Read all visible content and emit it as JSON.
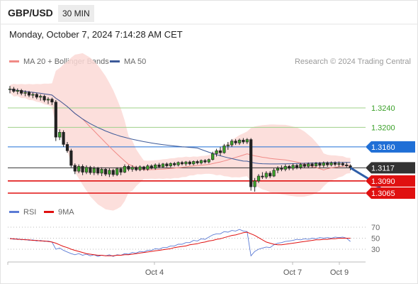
{
  "header": {
    "symbol": "GBP/USD",
    "timeframe": "30 MIN",
    "timestamp": "Monday, October 7, 2024 7:14:28 AM CET"
  },
  "legend": {
    "ma20": {
      "label": "MA 20 + Bollinger Bands",
      "color": "#f08a86"
    },
    "ma50": {
      "label": "MA 50",
      "color": "#3d5a99"
    }
  },
  "copyright": "Research © 2024 Trading Central",
  "rsi_legend": {
    "rsi": {
      "label": "RSI",
      "color": "#5b7bd5"
    },
    "ma9": {
      "label": "9MA",
      "color": "#e01010"
    }
  },
  "chart_data": {
    "type": "candlestick",
    "x_ticks": [
      "Oct 4",
      "Oct 7",
      "Oct 9"
    ],
    "price_levels": [
      {
        "value": 1.324,
        "label": "1.3240",
        "style": "resistance-line",
        "color": "#9fd08a",
        "label_color": "#3aa028"
      },
      {
        "value": 1.32,
        "label": "1.3200",
        "style": "resistance-line",
        "color": "#9fd08a",
        "label_color": "#3aa028"
      },
      {
        "value": 1.316,
        "label": "1.3160",
        "style": "pivot",
        "color": "#1f6fd6"
      },
      {
        "value": 1.3117,
        "label": "1.3117",
        "style": "current-price",
        "color": "#333333"
      },
      {
        "value": 1.309,
        "label": "1.3090",
        "style": "support",
        "color": "#e01010"
      },
      {
        "value": 1.3065,
        "label": "1.3065",
        "style": "support",
        "color": "#e01010"
      }
    ],
    "ohlc": [
      [
        1.3278,
        1.3285,
        1.327,
        1.3279
      ],
      [
        1.3279,
        1.3283,
        1.3271,
        1.3274
      ],
      [
        1.3274,
        1.328,
        1.3268,
        1.3276
      ],
      [
        1.3276,
        1.3279,
        1.3266,
        1.327
      ],
      [
        1.327,
        1.3276,
        1.3264,
        1.3272
      ],
      [
        1.3272,
        1.3275,
        1.3262,
        1.3266
      ],
      [
        1.3266,
        1.3272,
        1.326,
        1.3268
      ],
      [
        1.3268,
        1.3271,
        1.3258,
        1.3262
      ],
      [
        1.3262,
        1.3268,
        1.3255,
        1.3264
      ],
      [
        1.3264,
        1.3267,
        1.3252,
        1.3256
      ],
      [
        1.3256,
        1.3262,
        1.3248,
        1.3258
      ],
      [
        1.3258,
        1.3261,
        1.3246,
        1.3252
      ],
      [
        1.3252,
        1.3256,
        1.3172,
        1.318
      ],
      [
        1.318,
        1.3196,
        1.3174,
        1.319
      ],
      [
        1.319,
        1.3194,
        1.316,
        1.3165
      ],
      [
        1.3165,
        1.317,
        1.3148,
        1.3152
      ],
      [
        1.3152,
        1.3156,
        1.3118,
        1.3122
      ],
      [
        1.3122,
        1.3126,
        1.3104,
        1.311
      ],
      [
        1.311,
        1.3124,
        1.3106,
        1.312
      ],
      [
        1.312,
        1.3124,
        1.3102,
        1.3108
      ],
      [
        1.3108,
        1.3122,
        1.3104,
        1.3118
      ],
      [
        1.3118,
        1.3121,
        1.3103,
        1.3107
      ],
      [
        1.3107,
        1.312,
        1.3102,
        1.3116
      ],
      [
        1.3116,
        1.3119,
        1.3102,
        1.3106
      ],
      [
        1.3106,
        1.3118,
        1.31,
        1.3114
      ],
      [
        1.3114,
        1.3117,
        1.31,
        1.3104
      ],
      [
        1.3104,
        1.3116,
        1.3098,
        1.3112
      ],
      [
        1.3112,
        1.3115,
        1.3099,
        1.3103
      ],
      [
        1.3103,
        1.3118,
        1.31,
        1.3115
      ],
      [
        1.3115,
        1.3118,
        1.3102,
        1.3108
      ],
      [
        1.3108,
        1.3124,
        1.3106,
        1.312
      ],
      [
        1.312,
        1.3123,
        1.311,
        1.3114
      ],
      [
        1.3114,
        1.3122,
        1.3109,
        1.3118
      ],
      [
        1.3118,
        1.3121,
        1.311,
        1.3113
      ],
      [
        1.3113,
        1.3122,
        1.311,
        1.3119
      ],
      [
        1.3119,
        1.3121,
        1.3111,
        1.3114
      ],
      [
        1.3114,
        1.3124,
        1.3111,
        1.3121
      ],
      [
        1.3121,
        1.3124,
        1.3114,
        1.3116
      ],
      [
        1.3116,
        1.3126,
        1.3113,
        1.3123
      ],
      [
        1.3123,
        1.3127,
        1.3116,
        1.3119
      ],
      [
        1.3119,
        1.3127,
        1.3116,
        1.3125
      ],
      [
        1.3125,
        1.3128,
        1.3118,
        1.3121
      ],
      [
        1.3121,
        1.3128,
        1.3118,
        1.3126
      ],
      [
        1.3126,
        1.3129,
        1.312,
        1.3123
      ],
      [
        1.3123,
        1.313,
        1.312,
        1.3128
      ],
      [
        1.3128,
        1.3131,
        1.3122,
        1.3125
      ],
      [
        1.3125,
        1.3131,
        1.3121,
        1.3129
      ],
      [
        1.3129,
        1.3132,
        1.3122,
        1.3125
      ],
      [
        1.3125,
        1.3132,
        1.3122,
        1.313
      ],
      [
        1.313,
        1.3133,
        1.3124,
        1.3127
      ],
      [
        1.3127,
        1.3134,
        1.3124,
        1.3132
      ],
      [
        1.3132,
        1.3135,
        1.3126,
        1.3129
      ],
      [
        1.3129,
        1.3136,
        1.3126,
        1.3134
      ],
      [
        1.3134,
        1.315,
        1.3132,
        1.3146
      ],
      [
        1.3146,
        1.3156,
        1.314,
        1.3152
      ],
      [
        1.3152,
        1.316,
        1.3142,
        1.3148
      ],
      [
        1.3148,
        1.3166,
        1.3146,
        1.3162
      ],
      [
        1.3162,
        1.317,
        1.3154,
        1.3164
      ],
      [
        1.3164,
        1.3176,
        1.316,
        1.3172
      ],
      [
        1.3172,
        1.3176,
        1.3164,
        1.3168
      ],
      [
        1.3168,
        1.3177,
        1.3164,
        1.3174
      ],
      [
        1.3174,
        1.3178,
        1.3166,
        1.317
      ],
      [
        1.317,
        1.3178,
        1.3166,
        1.3175
      ],
      [
        1.3175,
        1.3178,
        1.307,
        1.3078
      ],
      [
        1.3078,
        1.3096,
        1.3068,
        1.309
      ],
      [
        1.309,
        1.3104,
        1.3086,
        1.31
      ],
      [
        1.31,
        1.3108,
        1.3094,
        1.3098
      ],
      [
        1.3098,
        1.311,
        1.3094,
        1.3106
      ],
      [
        1.3106,
        1.311,
        1.3096,
        1.31
      ],
      [
        1.31,
        1.3116,
        1.3098,
        1.3112
      ],
      [
        1.3112,
        1.312,
        1.3106,
        1.3116
      ],
      [
        1.3116,
        1.3122,
        1.311,
        1.3114
      ],
      [
        1.3114,
        1.3124,
        1.311,
        1.312
      ],
      [
        1.312,
        1.3123,
        1.3112,
        1.3116
      ],
      [
        1.3116,
        1.3126,
        1.3112,
        1.3122
      ],
      [
        1.3122,
        1.3125,
        1.3114,
        1.3118
      ],
      [
        1.3118,
        1.3127,
        1.3114,
        1.3124
      ],
      [
        1.3124,
        1.3127,
        1.3116,
        1.312
      ],
      [
        1.312,
        1.3128,
        1.3116,
        1.3125
      ],
      [
        1.3125,
        1.3128,
        1.3117,
        1.3121
      ],
      [
        1.3121,
        1.3129,
        1.3117,
        1.3126
      ],
      [
        1.3126,
        1.3129,
        1.3118,
        1.3122
      ],
      [
        1.3122,
        1.313,
        1.3118,
        1.3127
      ],
      [
        1.3127,
        1.313,
        1.3119,
        1.3123
      ],
      [
        1.3123,
        1.313,
        1.312,
        1.3127
      ],
      [
        1.3127,
        1.313,
        1.312,
        1.3124
      ],
      [
        1.3124,
        1.313,
        1.3119,
        1.3126
      ],
      [
        1.3126,
        1.3129,
        1.312,
        1.3123
      ],
      [
        1.3123,
        1.3128,
        1.3118,
        1.3121
      ],
      [
        1.3121,
        1.3124,
        1.3112,
        1.3117
      ]
    ],
    "projection_arrow": {
      "from": {
        "x": 89,
        "y": 1.3117
      },
      "to": {
        "x": 97,
        "y": 1.3075
      },
      "color": "#2f5ea8"
    },
    "rsi": {
      "ticks": [
        70,
        50,
        30
      ],
      "ylim": [
        10,
        80
      ],
      "rsi_values": [
        50,
        48,
        49,
        47,
        48,
        46,
        47,
        45,
        46,
        44,
        45,
        43,
        30,
        32,
        28,
        25,
        22,
        20,
        22,
        19,
        21,
        18,
        20,
        17,
        19,
        18,
        20,
        17,
        20,
        19,
        22,
        21,
        24,
        23,
        26,
        25,
        28,
        28,
        31,
        30,
        33,
        33,
        36,
        36,
        39,
        39,
        42,
        42,
        46,
        45,
        49,
        48,
        52,
        56,
        58,
        58,
        62,
        61,
        64,
        63,
        66,
        63,
        62,
        18,
        26,
        30,
        32,
        34,
        33,
        38,
        41,
        42,
        44,
        45,
        46,
        48,
        47,
        49,
        48,
        50,
        49,
        51,
        50,
        51,
        50,
        52,
        51,
        52,
        50,
        44
      ],
      "ma_values": [
        49,
        49,
        48,
        48,
        47,
        47,
        46,
        46,
        45,
        45,
        44,
        43,
        41,
        38,
        35,
        33,
        30,
        28,
        26,
        24,
        22,
        21,
        20,
        19,
        19,
        18,
        18,
        18,
        19,
        19,
        20,
        20,
        21,
        22,
        23,
        24,
        25,
        26,
        27,
        28,
        29,
        30,
        31,
        33,
        34,
        35,
        36,
        38,
        39,
        40,
        42,
        43,
        45,
        46,
        48,
        49,
        51,
        53,
        55,
        56,
        58,
        60,
        61,
        58,
        55,
        51,
        47,
        43,
        41,
        39,
        38,
        38,
        39,
        40,
        41,
        42,
        43,
        44,
        45,
        46,
        47,
        47,
        48,
        48,
        49,
        49,
        50,
        50,
        50,
        50
      ]
    }
  }
}
